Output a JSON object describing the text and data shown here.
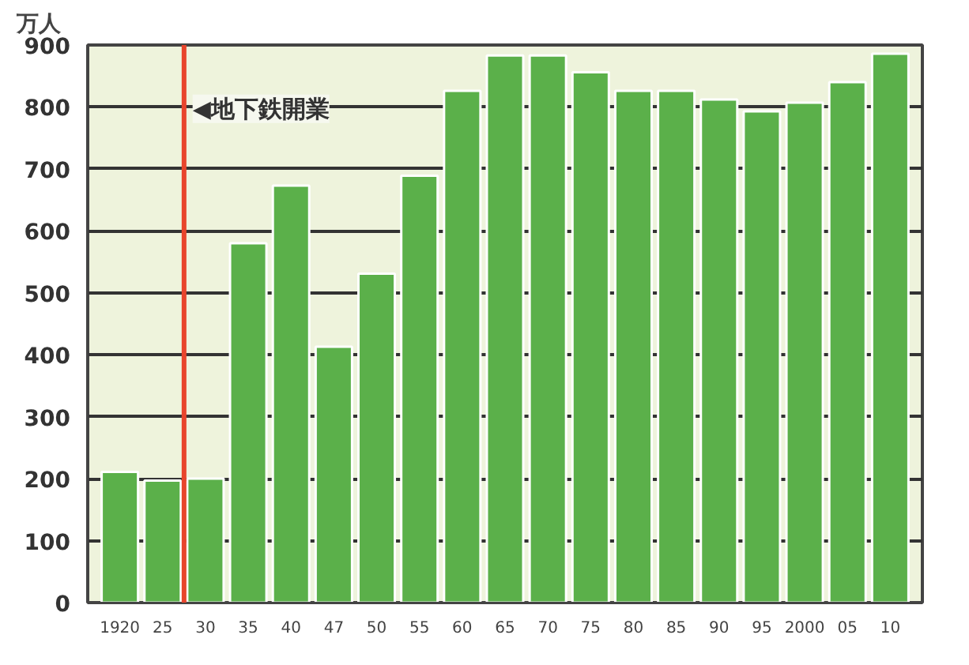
{
  "chart_data": {
    "type": "bar",
    "ylabel": "万人",
    "categories": [
      "1920",
      "25",
      "30",
      "35",
      "40",
      "47",
      "50",
      "55",
      "60",
      "65",
      "70",
      "75",
      "80",
      "85",
      "90",
      "95",
      "2000",
      "05",
      "10"
    ],
    "values": [
      211,
      197,
      200,
      580,
      673,
      413,
      531,
      689,
      826,
      883,
      883,
      856,
      826,
      826,
      812,
      793,
      807,
      840,
      886
    ],
    "color": "#5bb04a",
    "ylim": [
      0,
      900
    ],
    "yticks": [
      0,
      100,
      200,
      300,
      400,
      500,
      600,
      700,
      800,
      900
    ],
    "grid": "y",
    "ref_lines": [
      {
        "axis": "x",
        "value": "30",
        "label": "◀地下鉄開業",
        "color": "#e8452c"
      }
    ]
  }
}
